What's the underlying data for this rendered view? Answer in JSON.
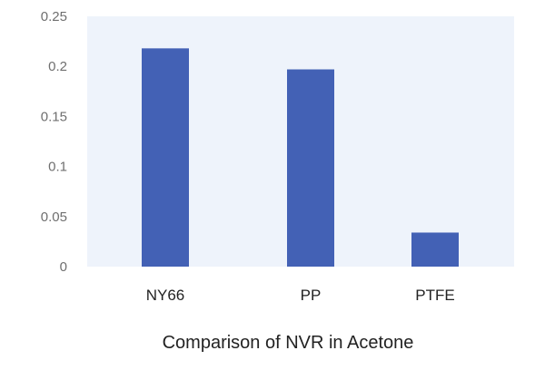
{
  "chart_data": {
    "type": "bar",
    "title": "Comparison of NVR in Acetone",
    "xlabel": "",
    "ylabel": "",
    "categories": [
      "NY66",
      "PP",
      "PTFE"
    ],
    "values": [
      0.218,
      0.197,
      0.034
    ],
    "ylim": [
      0,
      0.25
    ],
    "yticks": [
      "0",
      "0.05",
      "0.1",
      "0.15",
      "0.2",
      "0.25"
    ],
    "ytick_values": [
      0,
      0.05,
      0.1,
      0.15,
      0.2,
      0.25
    ],
    "grid": false,
    "legend": "none"
  },
  "colors": {
    "bar": "#4361b5",
    "plot_background": "#eef3fb"
  }
}
